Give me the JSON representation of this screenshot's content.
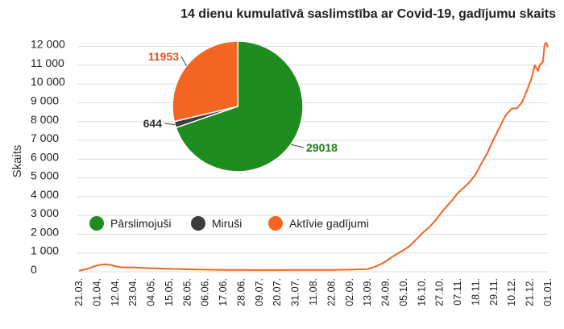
{
  "chart_data": {
    "type": "line",
    "title": "14 dienu kumulatīvā saslimstība ar Covid-19, gadījumu skaits",
    "ylabel": "Skaits",
    "ylim": [
      0,
      12500
    ],
    "yticks": [
      0,
      1000,
      2000,
      3000,
      4000,
      5000,
      6000,
      7000,
      8000,
      9000,
      10000,
      11000,
      12000
    ],
    "ytick_labels": [
      "0",
      "1 000",
      "2 000",
      "3 000",
      "4 000",
      "5 000",
      "6 000",
      "7 000",
      "8 000",
      "9 000",
      "10 000",
      "11 000",
      "12 000"
    ],
    "xtick_labels": [
      "21.03.",
      "01.04.",
      "12.04.",
      "23.04.",
      "04.05.",
      "15.05.",
      "26.05.",
      "06.06.",
      "17.06.",
      "28.06.",
      "09.07.",
      "20.07.",
      "31.07.",
      "11.08.",
      "22.08.",
      "02.09.",
      "13.09.",
      "24.09.",
      "05.10.",
      "16.10.",
      "27.10.",
      "07.11.",
      "18.11.",
      "29.11.",
      "10.12.",
      "21.12.",
      "01.01."
    ],
    "grid": "horizontal",
    "line_color": "#f26522",
    "series": [
      {
        "x": [
          0,
          5,
          8,
          11,
          14,
          16,
          18,
          20,
          22,
          25,
          28,
          33,
          38,
          44,
          50,
          58,
          66,
          77,
          88,
          99,
          110,
          121,
          132,
          143,
          154,
          165,
          176,
          180,
          184,
          188,
          192,
          195,
          198,
          202,
          206,
          210,
          214,
          218,
          221,
          224,
          228,
          231,
          235,
          238,
          242,
          245,
          249,
          252,
          256,
          260,
          264,
          267,
          270,
          273,
          276,
          278,
          280,
          281,
          283,
          284,
          285,
          286
        ],
        "y": [
          60,
          150,
          250,
          330,
          380,
          400,
          380,
          350,
          300,
          250,
          230,
          230,
          210,
          190,
          170,
          150,
          130,
          110,
          100,
          95,
          90,
          90,
          95,
          100,
          100,
          110,
          140,
          250,
          400,
          600,
          850,
          1000,
          1150,
          1400,
          1750,
          2100,
          2400,
          2800,
          3150,
          3450,
          3850,
          4200,
          4500,
          4750,
          5200,
          5700,
          6300,
          6900,
          7600,
          8300,
          8700,
          8700,
          9000,
          9600,
          10300,
          11000,
          10700,
          11000,
          11200,
          12100,
          12200,
          11953
        ]
      }
    ],
    "pie": {
      "type": "pie",
      "slices": [
        {
          "label": "Pārslimojuši",
          "value": 29018,
          "value_label": "29018",
          "color": "#1e8c1e",
          "label_color": "#1a7f1a"
        },
        {
          "label": "Miruši",
          "value": 644,
          "value_label": "644",
          "color": "#3d3d3d",
          "label_color": "#333333"
        },
        {
          "label": "Aktīvie gadījumi",
          "value": 11953,
          "value_label": "11953",
          "color": "#f26522",
          "label_color": "#e8531c"
        }
      ]
    },
    "legend": [
      "Pārslimojuši",
      "Miruši",
      "Aktīvie gadījumi"
    ]
  }
}
